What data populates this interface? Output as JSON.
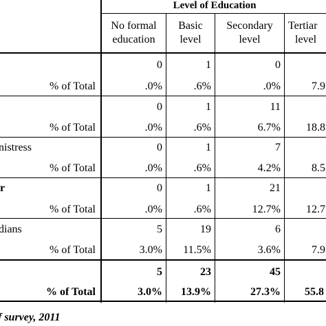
{
  "header": {
    "group_title": "Level of Education",
    "columns": [
      {
        "line1": "No formal",
        "line2": "education"
      },
      {
        "line1": "Basic",
        "line2": "level"
      },
      {
        "line1": "Secondary",
        "line2": "level"
      },
      {
        "line1": "Tertiar",
        "line2": "level"
      }
    ]
  },
  "rows": [
    {
      "label": "",
      "count": [
        "0",
        "1",
        "0",
        ""
      ],
      "pct_label": "% of Total",
      "pct": [
        ".0%",
        ".6%",
        ".0%",
        "7.9"
      ]
    },
    {
      "label": "",
      "count": [
        "0",
        "1",
        "11",
        ""
      ],
      "pct_label": "% of Total",
      "pct": [
        ".0%",
        ".6%",
        "6.7%",
        "18.8"
      ]
    },
    {
      "label": "nistress",
      "count": [
        "0",
        "1",
        "7",
        ""
      ],
      "pct_label": "% of Total",
      "pct": [
        ".0%",
        ".6%",
        "4.2%",
        "8.5"
      ]
    },
    {
      "label": "r",
      "count": [
        "0",
        "1",
        "21",
        ""
      ],
      "pct_label": "% of Total",
      "pct": [
        ".0%",
        ".6%",
        "12.7%",
        "12.7"
      ]
    },
    {
      "label": "dians",
      "count": [
        "5",
        "19",
        "6",
        ""
      ],
      "pct_label": "% of Total",
      "pct": [
        "3.0%",
        "11.5%",
        "3.6%",
        "7.9"
      ]
    }
  ],
  "total": {
    "count": [
      "5",
      "23",
      "45",
      ""
    ],
    "pct_label": "% of Total",
    "pct": [
      "3.0%",
      "13.9%",
      "27.3%",
      "55.8"
    ]
  },
  "source": "f survey, 2011"
}
